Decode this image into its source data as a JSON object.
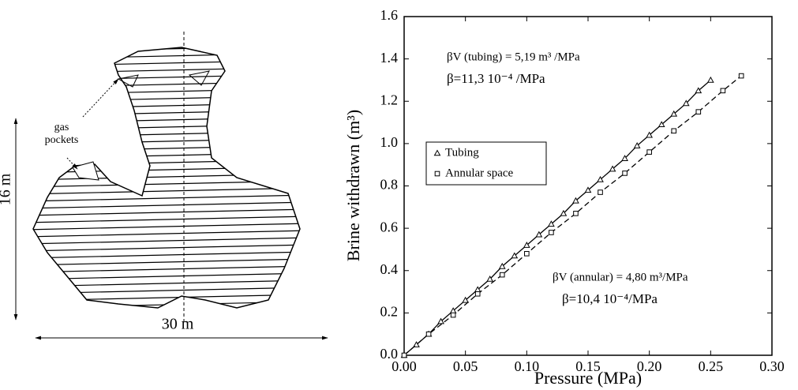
{
  "diagram": {
    "gas_label": [
      "gas",
      "pockets"
    ],
    "height_label": "16 m",
    "width_label": "30 m"
  },
  "chart_data": {
    "type": "scatter",
    "xlabel": "Pressure (MPa)",
    "ylabel": "Brine withdrawn (m³)",
    "xlim": [
      0,
      0.3
    ],
    "ylim": [
      0,
      1.6
    ],
    "xticks": [
      {
        "value": 0,
        "label": "0.00"
      },
      0.05,
      {
        "value": 0.1,
        "label": "0.10"
      },
      0.15,
      {
        "value": 0.2,
        "label": "0.20"
      },
      0.25,
      {
        "value": 0.3,
        "label": "0.30"
      }
    ],
    "yticks": [
      {
        "value": 0,
        "label": "0.0"
      },
      0.2,
      0.4,
      0.6,
      0.8,
      {
        "value": 1,
        "label": "1.0"
      },
      1.2,
      1.4,
      1.6
    ],
    "grid": false,
    "legend": "left",
    "annotations": [
      "βV (tubing) = 5,19 m³ /MPa",
      "β=11,3 10⁻⁴ /MPa",
      "βV (annular) = 4,80 m³/MPa",
      "β=10,4 10⁻⁴/MPa"
    ],
    "series": [
      {
        "name": "Tubing",
        "marker": "triangle",
        "line": "solid",
        "color": "#000000",
        "x": [
          0,
          0.01,
          0.02,
          0.03,
          0.04,
          0.05,
          0.06,
          0.07,
          0.08,
          0.09,
          0.1,
          0.11,
          0.12,
          0.13,
          0.14,
          0.15,
          0.16,
          0.17,
          0.18,
          0.19,
          0.2,
          0.21,
          0.22,
          0.23,
          0.24,
          0.25
        ],
        "values": [
          0,
          0.05,
          0.1,
          0.16,
          0.21,
          0.26,
          0.31,
          0.36,
          0.42,
          0.47,
          0.52,
          0.57,
          0.62,
          0.67,
          0.73,
          0.78,
          0.83,
          0.88,
          0.93,
          0.99,
          1.04,
          1.09,
          1.14,
          1.19,
          1.25,
          1.3
        ]
      },
      {
        "name": "Annular space",
        "marker": "square",
        "line": "dashed",
        "color": "#000000",
        "x": [
          0,
          0.02,
          0.04,
          0.06,
          0.08,
          0.1,
          0.12,
          0.14,
          0.16,
          0.18,
          0.2,
          0.22,
          0.24,
          0.26,
          0.275
        ],
        "values": [
          0,
          0.1,
          0.19,
          0.29,
          0.38,
          0.48,
          0.58,
          0.67,
          0.77,
          0.86,
          0.96,
          1.06,
          1.15,
          1.25,
          1.32
        ]
      }
    ]
  }
}
